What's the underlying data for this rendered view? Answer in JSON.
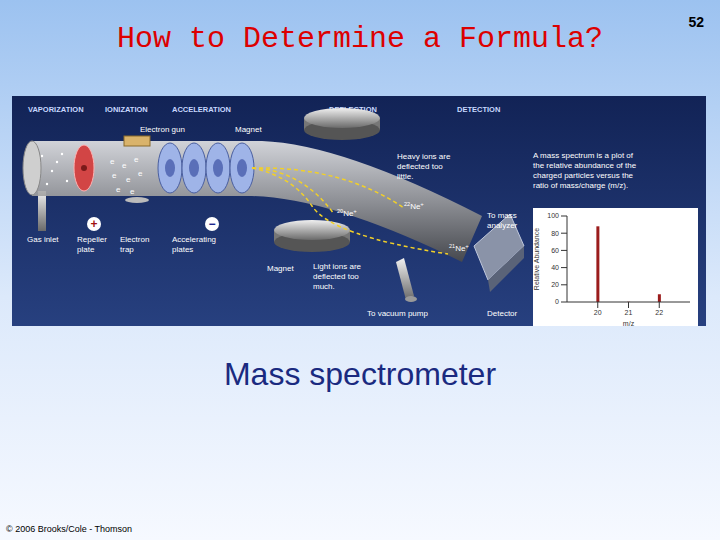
{
  "slide": {
    "title": "How to Determine a Formula?",
    "page": "52",
    "caption": "Mass spectrometer",
    "copyright": "© 2006 Brooks/Cole - Thomson"
  },
  "diagram": {
    "stages": [
      "VAPORIZATION",
      "IONIZATION",
      "ACCELERATION",
      "DEFLECTION",
      "DETECTION"
    ],
    "labels": {
      "electron_gun": "Electron gun",
      "magnet_top": "Magnet",
      "heavy_ions": "Heavy ions are deflected too little.",
      "spectrum_note": "A mass spectrum is a plot of the relative abundance of the charged particles versus the ratio of mass/charge (m/z).",
      "gas_inlet": "Gas inlet",
      "repeller_plate": "Repeller plate",
      "electron_trap": "Electron trap",
      "accelerating_plates": "Accelerating plates",
      "magnet_bottom": "Magnet",
      "light_ions": "Light ions are deflected too much.",
      "to_mass_analyzer": "To mass analyzer",
      "to_vacuum_pump": "To vacuum pump",
      "detector": "Detector"
    },
    "ions": [
      {
        "mass": "20",
        "symbol": "Ne",
        "charge": "+"
      },
      {
        "mass": "22",
        "symbol": "Ne",
        "charge": "+"
      },
      {
        "mass": "21",
        "symbol": "Ne",
        "charge": "+"
      }
    ],
    "electron": "e",
    "repeller_sign": "+",
    "accelerator_sign": "−"
  },
  "chart_data": {
    "type": "bar",
    "x": [
      20,
      21,
      22
    ],
    "values": [
      88,
      0.3,
      9
    ],
    "color": "#9b1c1c",
    "xlim": [
      19,
      23
    ],
    "xticks": [
      20,
      21,
      22
    ],
    "ylim": [
      0,
      100
    ],
    "yticks": [
      0,
      20,
      40,
      60,
      80,
      100
    ],
    "x_label": "m/z",
    "y_label": "Relative Abundance",
    "grid": false
  }
}
